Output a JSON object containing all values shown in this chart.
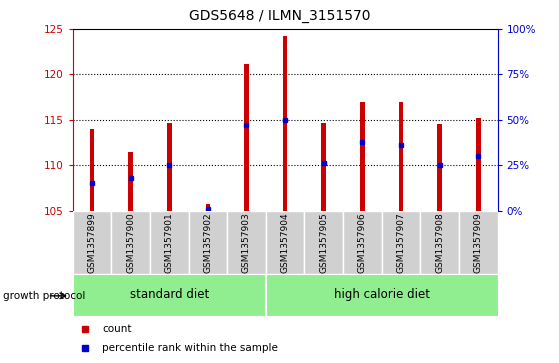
{
  "title": "GDS5648 / ILMN_3151570",
  "samples": [
    "GSM1357899",
    "GSM1357900",
    "GSM1357901",
    "GSM1357902",
    "GSM1357903",
    "GSM1357904",
    "GSM1357905",
    "GSM1357906",
    "GSM1357907",
    "GSM1357908",
    "GSM1357909"
  ],
  "counts": [
    114.0,
    111.5,
    114.7,
    105.7,
    121.1,
    124.2,
    114.7,
    117.0,
    117.0,
    114.5,
    115.2
  ],
  "percentile_ranks": [
    15,
    18,
    25,
    1,
    47,
    50,
    26,
    38,
    36,
    25,
    30
  ],
  "ylim_left": [
    105,
    125
  ],
  "ylim_right": [
    0,
    100
  ],
  "yticks_left": [
    105,
    110,
    115,
    120,
    125
  ],
  "yticks_right": [
    0,
    25,
    50,
    75,
    100
  ],
  "ytick_labels_right": [
    "0%",
    "25%",
    "50%",
    "75%",
    "100%"
  ],
  "bar_color": "#CC0000",
  "percentile_color": "#0000CC",
  "left_axis_color": "#CC0000",
  "right_axis_color": "#0000CC",
  "gray_box_color": "#D0D0D0",
  "group_color": "#90EE90",
  "bar_width": 0.12,
  "standard_diet_count": 5,
  "high_calorie_count": 6
}
